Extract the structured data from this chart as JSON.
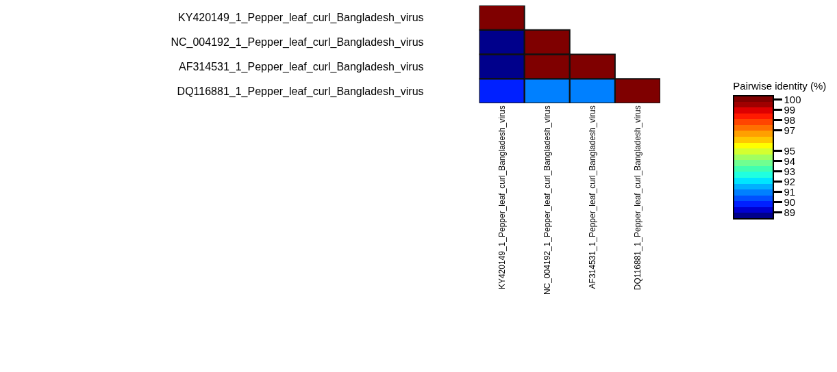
{
  "chart_data": {
    "type": "heatmap",
    "categories": [
      "KY420149_1_Pepper_leaf_curl_Bangladesh_virus",
      "NC_004192_1_Pepper_leaf_curl_Bangladesh_virus",
      "AF314531_1_Pepper_leaf_curl_Bangladesh_virus",
      "DQ116881_1_Pepper_leaf_curl_Bangladesh_virus"
    ],
    "y_categories": [
      "KY420149_1_Pepper_leaf_curl_Bangladesh_virus",
      "NC_004192_1_Pepper_leaf_curl_Bangladesh_virus",
      "AF314531_1_Pepper_leaf_curl_Bangladesh_virus",
      "DQ116881_1_Pepper_leaf_curl_Bangladesh_virus"
    ],
    "cells": [
      [
        100,
        null,
        null,
        null
      ],
      [
        88.7,
        100,
        null,
        null
      ],
      [
        88.7,
        100,
        100,
        null
      ],
      [
        89.8,
        91.2,
        91.2,
        100
      ]
    ],
    "clabel": "Pairwise identity (%)",
    "clim": [
      88.4,
      100.4
    ],
    "cticks": [
      100,
      99,
      98,
      97,
      95,
      94,
      93,
      92,
      91,
      90,
      89
    ]
  }
}
